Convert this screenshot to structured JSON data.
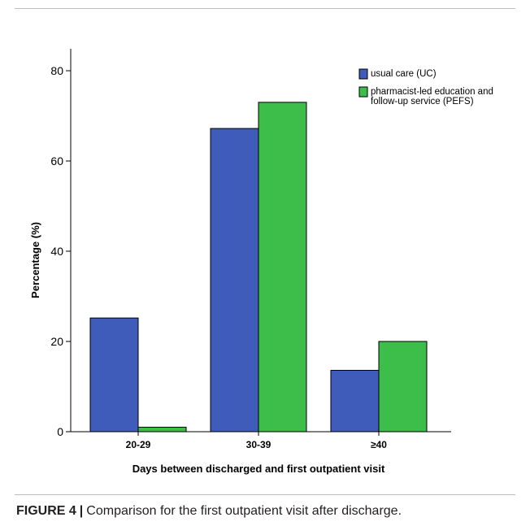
{
  "figure": {
    "label": "FIGURE 4",
    "separator": "|",
    "caption": "Comparison for the first outpatient visit after discharge."
  },
  "chart_data": {
    "type": "bar",
    "title": "",
    "xlabel": "Days between discharged and first outpatient visit",
    "ylabel": "Percentage (%)",
    "categories": [
      "20-29",
      "30-39",
      "≥40"
    ],
    "series": [
      {
        "name": "usual care (UC)",
        "color": "#3f5cbb",
        "values": [
          25.2,
          67.2,
          13.6
        ]
      },
      {
        "name": "pharmacist-led education and follow-up service (PEFS)",
        "color": "#3dbd4a",
        "values": [
          1.0,
          73.0,
          20.0
        ]
      }
    ],
    "ylim": [
      0,
      85
    ],
    "yticks": [
      0,
      20,
      40,
      60,
      80
    ],
    "legend": "top-right",
    "grid": false
  }
}
